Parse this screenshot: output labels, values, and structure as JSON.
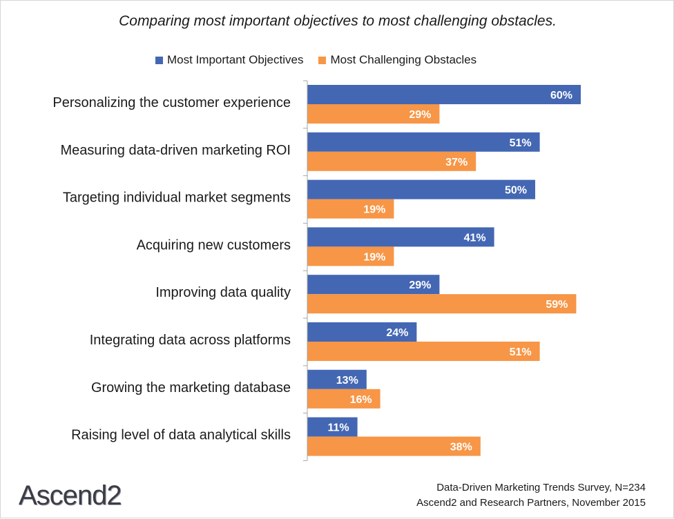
{
  "title": "Comparing most important objectives to most challenging obstacles.",
  "colors": {
    "objectives": "#4467B4",
    "obstacles": "#F79646",
    "axis": "#A6A6A6"
  },
  "chart_data": {
    "type": "bar",
    "orientation": "horizontal",
    "title": "Comparing most important objectives to most challenging obstacles.",
    "categories": [
      "Personalizing the customer experience",
      "Measuring data-driven marketing ROI",
      "Targeting individual market segments",
      "Acquiring new customers",
      "Improving data quality",
      "Integrating data across platforms",
      "Growing the marketing database",
      "Raising level of data analytical skills"
    ],
    "series": [
      {
        "name": "Most Important Objectives",
        "values": [
          60,
          51,
          50,
          41,
          29,
          24,
          13,
          11
        ]
      },
      {
        "name": "Most Challenging Obstacles",
        "values": [
          29,
          37,
          19,
          19,
          59,
          51,
          16,
          38
        ]
      }
    ],
    "value_suffix": "%",
    "xlim": [
      0,
      70
    ],
    "legend_position": "top",
    "grid": false
  },
  "footer": {
    "line1": "Data-Driven Marketing Trends Survey, N=234",
    "line2": "Ascend2 and Research Partners, November 2015"
  },
  "logo": {
    "text": "Ascend2"
  }
}
